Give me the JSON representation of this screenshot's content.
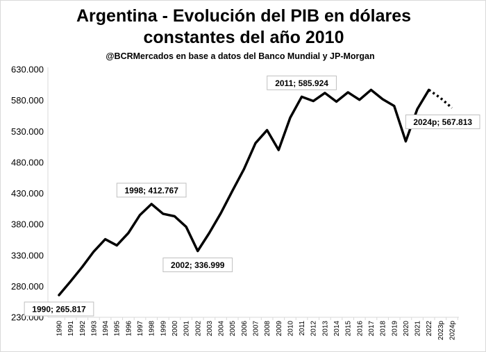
{
  "chart_data": {
    "type": "line",
    "title": "Argentina - Evolución del PIB en dólares",
    "title_line2": "constantes del año 2010",
    "subtitle": "@BCRMercados  en base a datos del Banco Mundial y JP-Morgan",
    "xlabel": "",
    "ylabel": "",
    "ylim": [
      230000,
      630000
    ],
    "yticks": [
      230000,
      280000,
      330000,
      380000,
      430000,
      480000,
      530000,
      580000,
      630000
    ],
    "ytick_labels": [
      "230.000",
      "280.000",
      "330.000",
      "380.000",
      "430.000",
      "480.000",
      "530.000",
      "580.000",
      "630.000"
    ],
    "categories": [
      "1990",
      "1991",
      "1992",
      "1993",
      "1994",
      "1995",
      "1996",
      "1997",
      "1998",
      "1999",
      "2000",
      "2001",
      "2002",
      "2003",
      "2004",
      "2005",
      "2006",
      "2007",
      "2008",
      "2009",
      "2010",
      "2011",
      "2012",
      "2013",
      "2014",
      "2015",
      "2016",
      "2017",
      "2018",
      "2019",
      "2020",
      "2021",
      "2022",
      "2023p",
      "2024p"
    ],
    "series": [
      {
        "values": [
          265817,
          288000,
          311000,
          336000,
          356000,
          346000,
          366000,
          395000,
          412767,
          397000,
          393000,
          376000,
          336999,
          366000,
          398000,
          434000,
          469000,
          511000,
          532000,
          500000,
          552000,
          585924,
          579000,
          592000,
          578000,
          593000,
          581000,
          597000,
          582000,
          571000,
          514000,
          566000,
          597000,
          584000,
          567813
        ],
        "solid_through": "2022",
        "projected_from": "2022",
        "color": "#000000"
      }
    ],
    "annotations": [
      {
        "category": "1990",
        "label": "1990; 265.817",
        "position": "below"
      },
      {
        "category": "1998",
        "label": "1998; 412.767",
        "position": "above"
      },
      {
        "category": "2002",
        "label": "2002; 336.999",
        "position": "below"
      },
      {
        "category": "2011",
        "label": "2011; 585.924",
        "position": "above"
      },
      {
        "category": "2024p",
        "label": "2024p; 567.813",
        "position": "below"
      }
    ],
    "grid": false,
    "legend": "none"
  }
}
